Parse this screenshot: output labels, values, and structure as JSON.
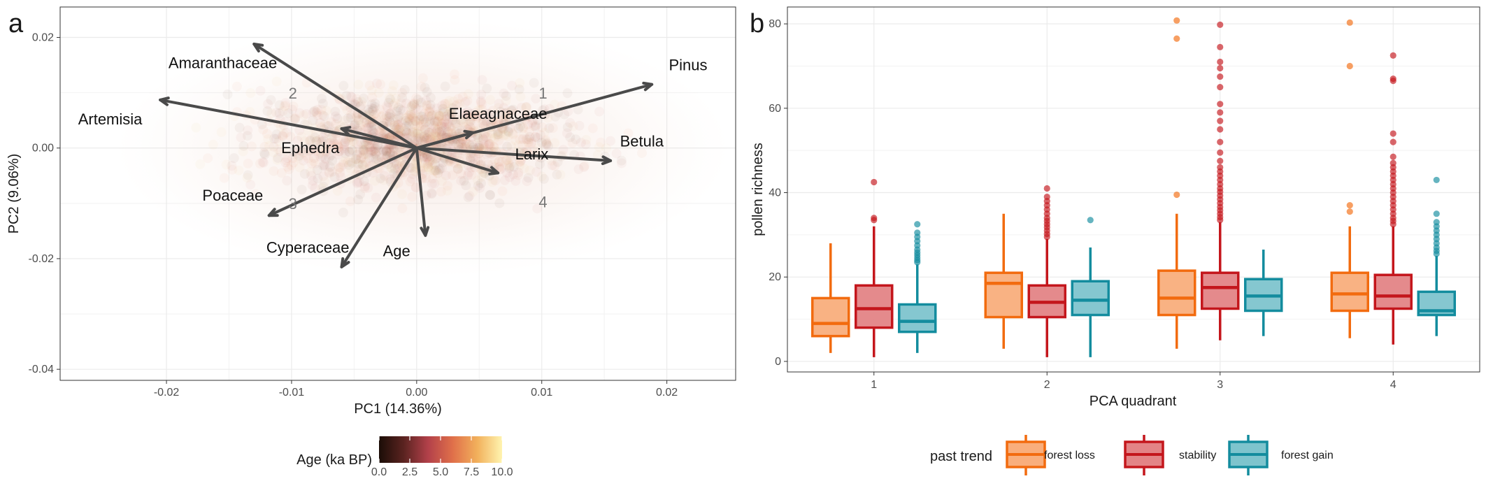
{
  "figure": {
    "panel_a_label": "a",
    "panel_b_label": "b"
  },
  "chart_data": [
    {
      "type": "scatter",
      "panel": "a",
      "xlabel": "PC1 (14.36%)",
      "ylabel": "PC2 (9.06%)",
      "xlim": [
        -0.0285,
        0.0255
      ],
      "ylim": [
        -0.042,
        0.0255
      ],
      "xticks": [
        -0.02,
        -0.01,
        0.0,
        0.01,
        0.02
      ],
      "xtick_labels": [
        "-0.02",
        "-0.01",
        "0.00",
        "0.01",
        "0.02"
      ],
      "yticks": [
        -0.04,
        -0.02,
        0.0,
        0.02
      ],
      "ytick_labels": [
        "-0.04",
        "-0.02",
        "0.00",
        "0.02"
      ],
      "grid": true,
      "points_note": "dense cloud of semi-transparent sample points coloured by age",
      "colorbar": {
        "title": "Age (ka BP)",
        "min": 0,
        "max": 10,
        "ticks": [
          "0.0",
          "2.5",
          "5.0",
          "7.5",
          "10.0"
        ],
        "colors": [
          "#1b0d07",
          "#5a2320",
          "#b3414a",
          "#e0704a",
          "#f2b15c",
          "#fff4b0"
        ]
      },
      "arrow_color": "#4a4a4a",
      "loadings": [
        {
          "name": "Pinus",
          "x": 0.0188,
          "y": 0.0115,
          "lx": 0.0217,
          "ly": 0.0148
        },
        {
          "name": "Amaranthaceae",
          "x": -0.013,
          "y": 0.0188,
          "lx": -0.0155,
          "ly": 0.0152
        },
        {
          "name": "Artemisia",
          "x": -0.0205,
          "y": 0.0087,
          "lx": -0.0245,
          "ly": 0.005
        },
        {
          "name": "Elaeagnaceae",
          "x": 0.0045,
          "y": 0.0028,
          "lx": 0.0065,
          "ly": 0.006
        },
        {
          "name": "Ephedra",
          "x": -0.006,
          "y": 0.0035,
          "lx": -0.0085,
          "ly": -0.0002
        },
        {
          "name": "Larix",
          "x": 0.0065,
          "y": -0.0045,
          "lx": 0.0092,
          "ly": -0.0013
        },
        {
          "name": "Betula",
          "x": 0.0155,
          "y": -0.0023,
          "lx": 0.018,
          "ly": 0.001
        },
        {
          "name": "Poaceae",
          "x": -0.0118,
          "y": -0.0122,
          "lx": -0.0147,
          "ly": -0.0088
        },
        {
          "name": "Cyperaceae",
          "x": -0.006,
          "y": -0.0215,
          "lx": -0.0087,
          "ly": -0.0182
        },
        {
          "name": "Age",
          "x": 0.0007,
          "y": -0.0158,
          "lx": -0.0016,
          "ly": -0.0188
        }
      ],
      "quadrant_labels": [
        {
          "text": "1",
          "x": 0.0101,
          "y": 0.0097
        },
        {
          "text": "2",
          "x": -0.0099,
          "y": 0.0097
        },
        {
          "text": "3",
          "x": -0.0099,
          "y": -0.0103
        },
        {
          "text": "4",
          "x": 0.0101,
          "y": -0.01
        }
      ]
    },
    {
      "type": "box",
      "panel": "b",
      "xlabel": "PCA quadrant",
      "ylabel": "pollen richness",
      "categories": [
        "1",
        "2",
        "3",
        "4"
      ],
      "ylim": [
        -2.5,
        84
      ],
      "yticks": [
        0,
        20,
        40,
        60,
        80
      ],
      "ytick_labels": [
        "0",
        "20",
        "40",
        "60",
        "80"
      ],
      "grid": true,
      "legend": {
        "title": "past trend",
        "placement": "bottom",
        "entries": [
          "forest loss",
          "stability",
          "forest gain"
        ]
      },
      "series": [
        {
          "name": "forest loss",
          "stroke": "#f26b0f",
          "fill": "#f9ae7c",
          "boxes": [
            {
              "min": 2,
              "q1": 6,
              "median": 9,
              "q3": 15,
              "max": 28,
              "outliers": []
            },
            {
              "min": 3,
              "q1": 10.5,
              "median": 18.5,
              "q3": 21,
              "max": 35,
              "outliers": []
            },
            {
              "min": 3,
              "q1": 11,
              "median": 15,
              "q3": 21.5,
              "max": 35,
              "outliers": [
                39.5,
                76.5,
                80.8
              ]
            },
            {
              "min": 5.5,
              "q1": 12,
              "median": 16,
              "q3": 21,
              "max": 32,
              "outliers": [
                35.5,
                37,
                70,
                80.3
              ]
            }
          ]
        },
        {
          "name": "stability",
          "stroke": "#c4161c",
          "fill": "#e38486",
          "boxes": [
            {
              "min": 1,
              "q1": 8,
              "median": 12.5,
              "q3": 18,
              "max": 32,
              "outliers": [
                33.5,
                34,
                42.5
              ]
            },
            {
              "min": 1,
              "q1": 10.5,
              "median": 14,
              "q3": 18,
              "max": 29,
              "outliers": [
                29.5,
                30.2,
                31,
                31.8,
                32.5,
                33.3,
                34,
                35,
                36,
                37,
                38,
                39,
                41
              ]
            },
            {
              "min": 5,
              "q1": 12.5,
              "median": 17.5,
              "q3": 21,
              "max": 33,
              "outliers": [
                33.5,
                34.2,
                35,
                35.8,
                36.6,
                37.5,
                38.4,
                39.3,
                40.2,
                41,
                42,
                43,
                44,
                45,
                46,
                47.5,
                49.5,
                52,
                55,
                57,
                59,
                61,
                65,
                67.5,
                69.5,
                71,
                74.5,
                79.8
              ]
            },
            {
              "min": 4,
              "q1": 12.5,
              "median": 15.5,
              "q3": 20.5,
              "max": 32,
              "outliers": [
                32.5,
                33.3,
                34,
                35,
                36,
                37,
                38,
                39,
                40,
                41,
                42,
                43,
                44,
                45,
                46,
                47,
                48.5,
                52,
                54,
                66.5,
                67,
                72.5
              ]
            }
          ]
        },
        {
          "name": "forest gain",
          "stroke": "#138c9e",
          "fill": "#7ec4cd",
          "boxes": [
            {
              "min": 2,
              "q1": 7,
              "median": 9.5,
              "q3": 13.5,
              "max": 23,
              "outliers": [
                23.5,
                24,
                24.6,
                25.2,
                25.8,
                26.5,
                27.5,
                28.5,
                29.5,
                30.5,
                32.5
              ]
            },
            {
              "min": 1,
              "q1": 11,
              "median": 14.5,
              "q3": 19,
              "max": 27,
              "outliers": [
                33.5
              ]
            },
            {
              "min": 6,
              "q1": 12,
              "median": 15.5,
              "q3": 19.5,
              "max": 26.5,
              "outliers": []
            },
            {
              "min": 6,
              "q1": 11,
              "median": 12,
              "q3": 16.5,
              "max": 25,
              "outliers": [
                25.5,
                26.2,
                27,
                28,
                29,
                30,
                31,
                32,
                33,
                35,
                43
              ]
            }
          ]
        }
      ]
    }
  ]
}
